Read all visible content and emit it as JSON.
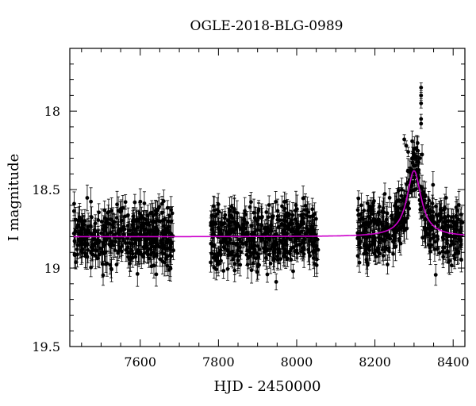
{
  "chart_data": {
    "type": "scatter",
    "title": "OGLE-2018-BLG-0989",
    "xlabel": "HJD - 2450000",
    "ylabel": "I magnitude",
    "xlim": [
      7420,
      8430
    ],
    "ylim": [
      19.5,
      17.6
    ],
    "y_inverted": true,
    "x_ticks": [
      7600,
      7800,
      8000,
      8200,
      8400
    ],
    "y_ticks": [
      18,
      18.5,
      19,
      19.5
    ],
    "x_tick_labels": [
      "7600",
      "7800",
      "8000",
      "8200",
      "8400"
    ],
    "y_tick_labels": [
      "18",
      "18.5",
      "19",
      "19.5"
    ],
    "grid": false,
    "series": [
      {
        "kind": "points_with_errorbars",
        "color": "#000000",
        "segments": [
          {
            "x_range": [
              7430,
              7685
            ],
            "baseline": 18.8,
            "scatter": 0.1,
            "typical_error": 0.06
          },
          {
            "x_range": [
              7780,
              8055
            ],
            "baseline": 18.8,
            "scatter": 0.1,
            "typical_error": 0.06
          },
          {
            "x_range": [
              8155,
              8425
            ],
            "baseline": 18.8,
            "scatter": 0.1,
            "typical_error": 0.06
          }
        ],
        "event": {
          "peak_x": 8300,
          "peak_mag": 18.38,
          "width": 22
        },
        "anomaly": {
          "x": [
            8275,
            8280,
            8285,
            8295,
            8300,
            8305,
            8310,
            8315,
            8318,
            8318,
            8318,
            8318,
            8318
          ],
          "y": [
            18.18,
            18.22,
            18.26,
            18.3,
            18.28,
            18.3,
            18.32,
            18.3,
            17.85,
            17.9,
            17.95,
            18.05,
            18.08
          ]
        }
      },
      {
        "kind": "model_curve",
        "color": "#cc00cc",
        "baseline": 18.8,
        "peak_x": 8300,
        "peak_mag": 18.38,
        "width": 22
      }
    ]
  }
}
